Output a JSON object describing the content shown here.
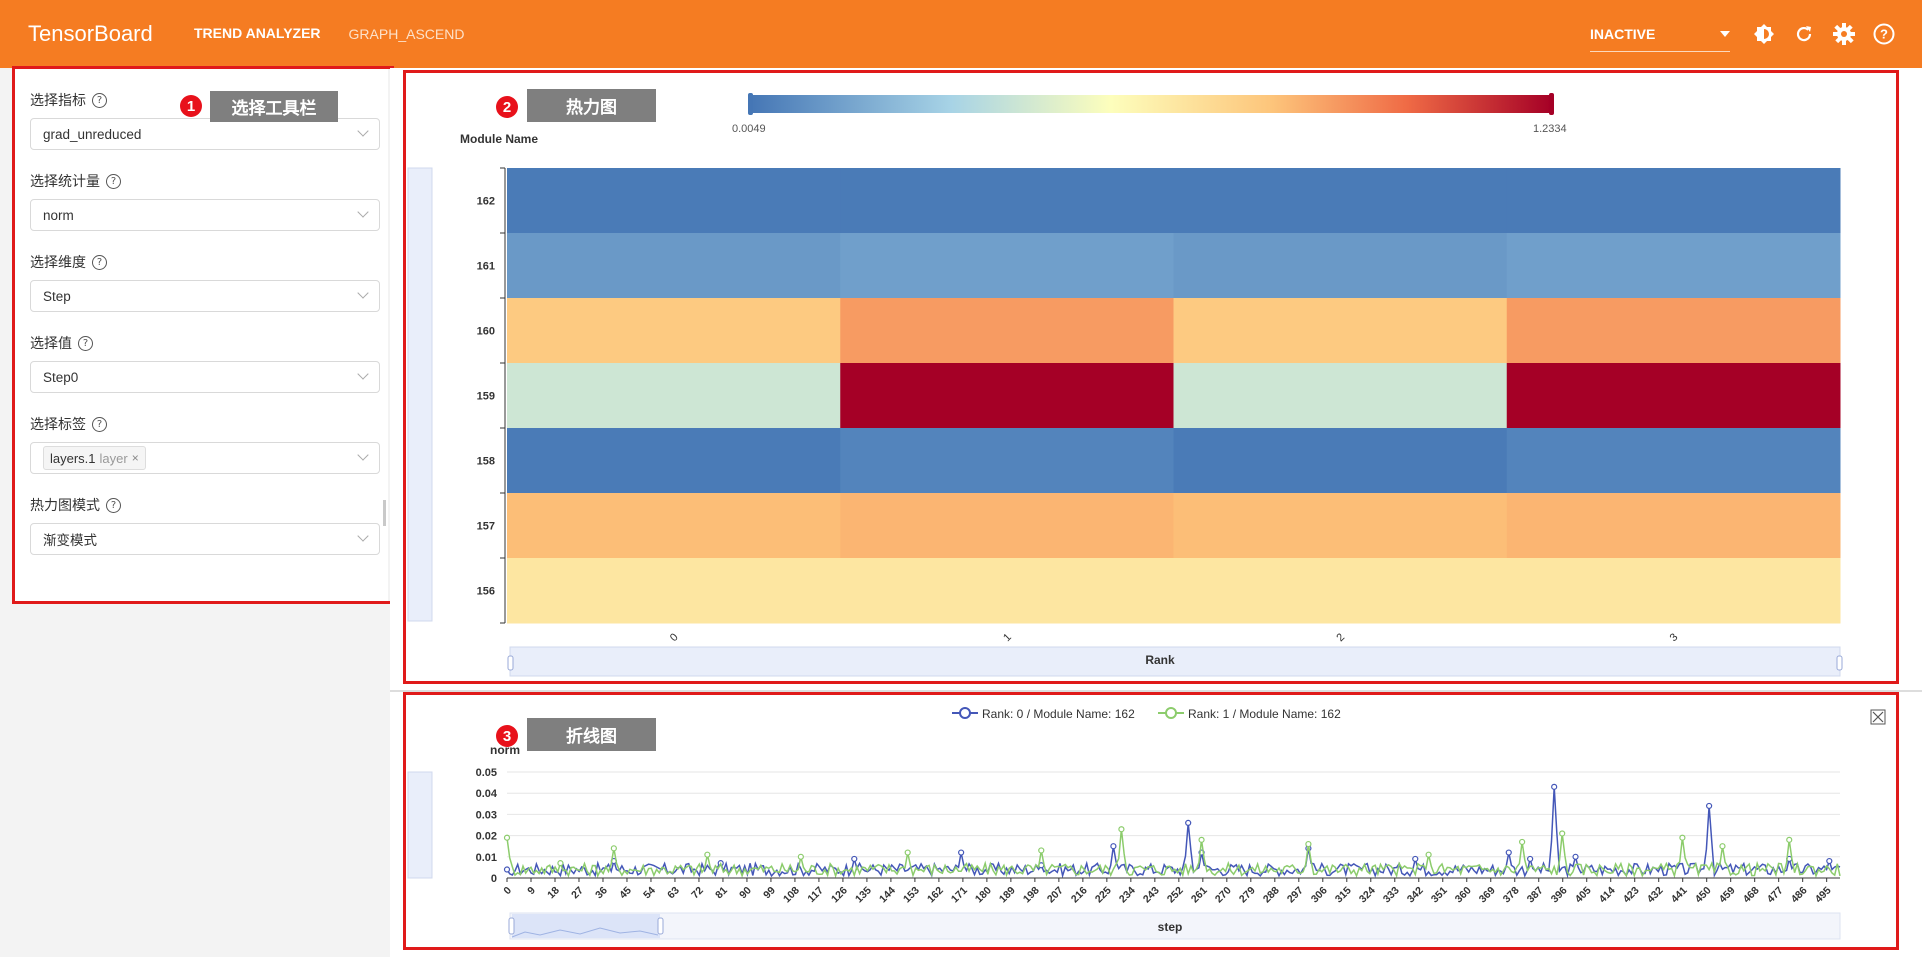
{
  "header": {
    "brand": "TensorBoard",
    "tabs": [
      {
        "label": "TREND ANALYZER",
        "active": true
      },
      {
        "label": "GRAPH_ASCEND",
        "active": false
      }
    ],
    "run_select_value": "INACTIVE",
    "icons": [
      "theme-icon",
      "refresh-icon",
      "settings-icon",
      "help-icon"
    ],
    "accent_color": "#f57c22"
  },
  "sidebar": {
    "annotation": {
      "number": "1",
      "label": "选择工具栏"
    },
    "fields": [
      {
        "label": "选择指标",
        "value": "grad_unreduced"
      },
      {
        "label": "选择统计量",
        "value": "norm"
      },
      {
        "label": "选择维度",
        "value": "Step"
      },
      {
        "label": "选择值",
        "value": "Step0"
      },
      {
        "label": "选择标签",
        "tag": {
          "text": "layers.1",
          "sub": "layer",
          "close": "×"
        }
      },
      {
        "label": "热力图模式",
        "value": "渐变模式"
      }
    ]
  },
  "heatmap": {
    "annotation": {
      "number": "2",
      "label": "热力图"
    },
    "visual_map": {
      "min_label": "0.0049",
      "max_label": "1.2334"
    },
    "y_axis_name": "Module Name",
    "x_axis_name": "Rank",
    "chart_data": {
      "type": "heatmap",
      "x_categories": [
        "0",
        "1",
        "2",
        "3"
      ],
      "y_categories": [
        "162",
        "161",
        "160",
        "159",
        "158",
        "157",
        "156"
      ],
      "values": [
        [
          0.02,
          0.02,
          0.02,
          0.02
        ],
        [
          0.12,
          0.14,
          0.12,
          0.14
        ],
        [
          0.78,
          0.9,
          0.78,
          0.9
        ],
        [
          0.42,
          1.2334,
          0.42,
          1.2334
        ],
        [
          0.02,
          0.05,
          0.02,
          0.05
        ],
        [
          0.82,
          0.84,
          0.82,
          0.84
        ],
        [
          0.66,
          0.66,
          0.66,
          0.66
        ]
      ],
      "min": 0.0049,
      "max": 1.2334
    }
  },
  "linechart": {
    "annotation": {
      "number": "3",
      "label": "折线图"
    },
    "legend": [
      {
        "name": "Rank: 0 / Module Name: 162",
        "color": "#4457b8"
      },
      {
        "name": "Rank: 1 / Module Name: 162",
        "color": "#8ccc6c"
      }
    ],
    "y_axis_name": "norm",
    "x_axis_name": "step",
    "chart_data": {
      "type": "line",
      "ylim": [
        0,
        0.05
      ],
      "y_ticks": [
        "0",
        "0.01",
        "0.02",
        "0.03",
        "0.04",
        "0.05"
      ],
      "x_tick_labels": [
        "0",
        "9",
        "18",
        "27",
        "36",
        "45",
        "54",
        "63",
        "72",
        "81",
        "90",
        "99",
        "108",
        "117",
        "126",
        "135",
        "144",
        "153",
        "162",
        "171",
        "180",
        "189",
        "198",
        "207",
        "216",
        "225",
        "234",
        "243",
        "252",
        "261",
        "270",
        "279",
        "288",
        "297",
        "306",
        "315",
        "324",
        "333",
        "342",
        "351",
        "360",
        "369",
        "378",
        "387",
        "396",
        "405",
        "414",
        "423",
        "432",
        "441",
        "450",
        "459",
        "468",
        "477",
        "486",
        "495"
      ],
      "series": [
        {
          "name": "Rank: 0 / Module Name: 162",
          "peaks": [
            [
              0,
              0.004
            ],
            [
              40,
              0.008
            ],
            [
              80,
              0.007
            ],
            [
              130,
              0.009
            ],
            [
              170,
              0.012
            ],
            [
              200,
              0.006
            ],
            [
              227,
              0.015
            ],
            [
              255,
              0.026
            ],
            [
              260,
              0.012
            ],
            [
              300,
              0.014
            ],
            [
              340,
              0.009
            ],
            [
              375,
              0.012
            ],
            [
              383,
              0.009
            ],
            [
              392,
              0.043
            ],
            [
              400,
              0.01
            ],
            [
              450,
              0.034
            ],
            [
              480,
              0.009
            ],
            [
              495,
              0.008
            ]
          ]
        },
        {
          "name": "Rank: 1 / Module Name: 162",
          "peaks": [
            [
              0,
              0.019
            ],
            [
              20,
              0.007
            ],
            [
              40,
              0.014
            ],
            [
              75,
              0.011
            ],
            [
              110,
              0.01
            ],
            [
              150,
              0.012
            ],
            [
              200,
              0.013
            ],
            [
              230,
              0.023
            ],
            [
              260,
              0.018
            ],
            [
              300,
              0.016
            ],
            [
              345,
              0.011
            ],
            [
              380,
              0.017
            ],
            [
              395,
              0.021
            ],
            [
              440,
              0.019
            ],
            [
              455,
              0.015
            ],
            [
              480,
              0.018
            ]
          ]
        }
      ]
    }
  }
}
